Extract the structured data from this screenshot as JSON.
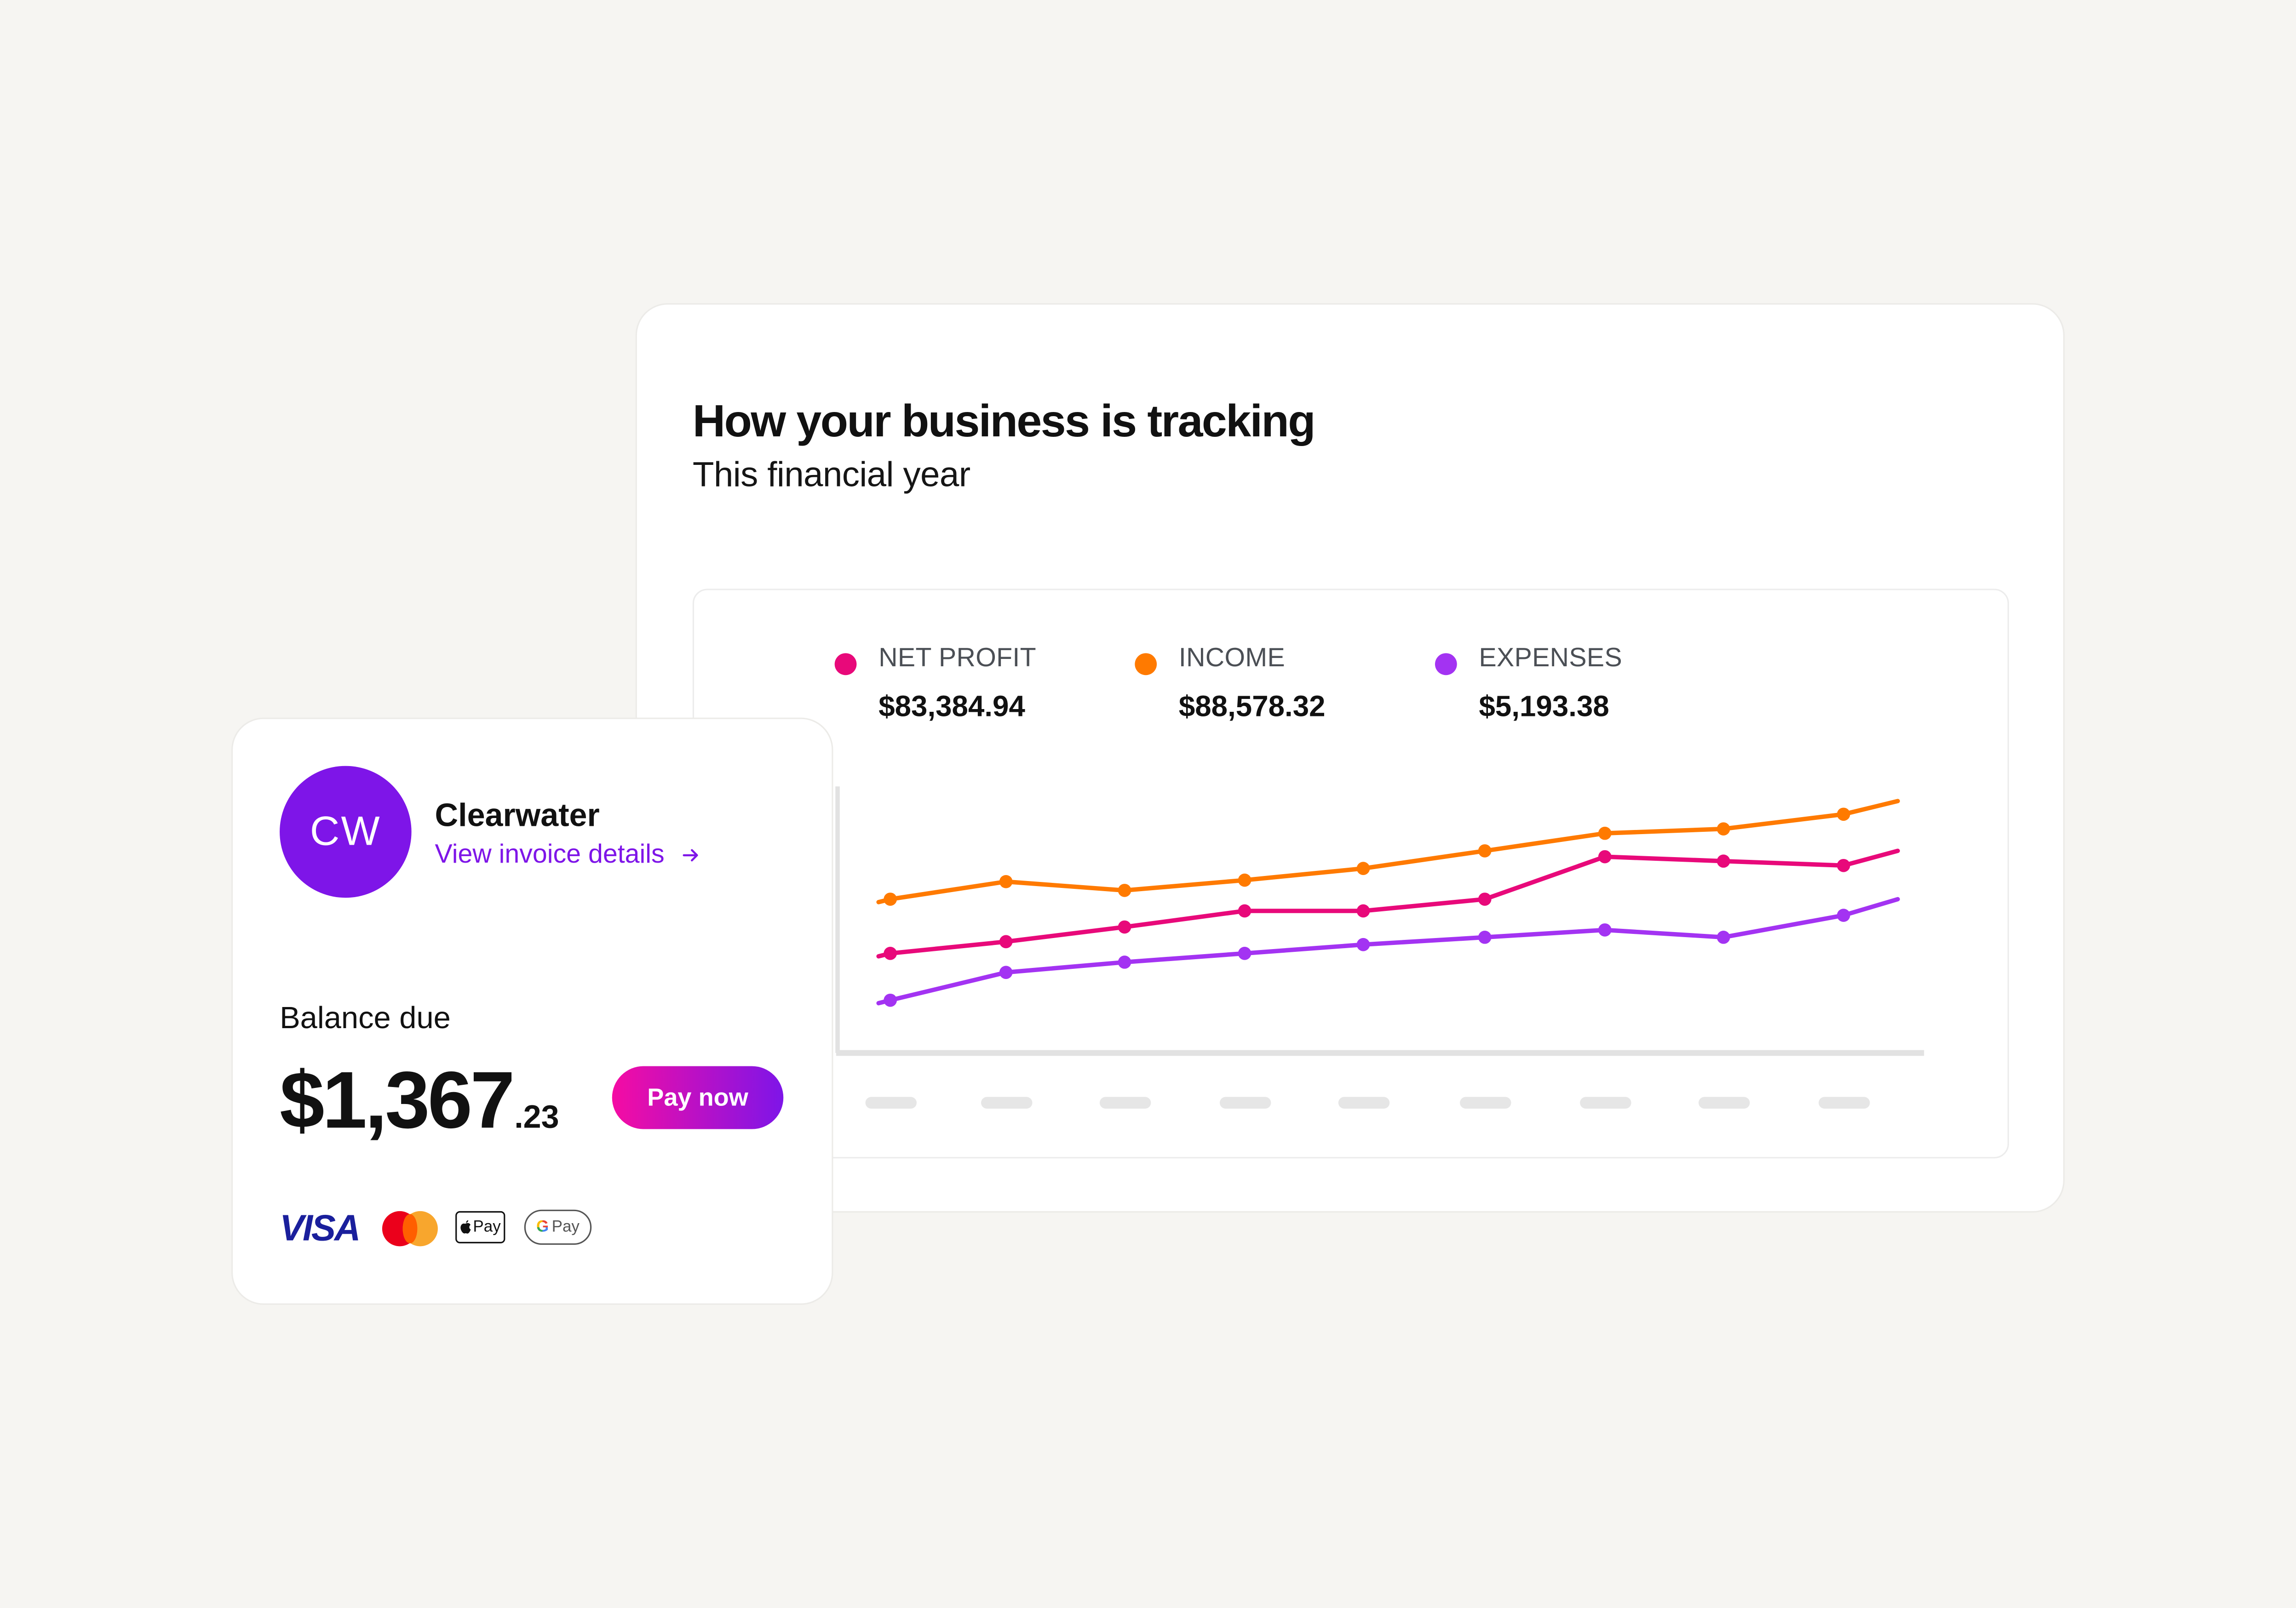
{
  "background_color": "#F6F5F2",
  "dashboard": {
    "title": "How your business is tracking",
    "subtitle": "This financial year",
    "legend": [
      {
        "label": "NET PROFIT",
        "value": "$83,384.94",
        "color": "#E8097A"
      },
      {
        "label": "INCOME",
        "value": "$88,578.32",
        "color": "#FF7A00"
      },
      {
        "label": "EXPENSES",
        "value": "$5,193.38",
        "color": "#A333F2"
      }
    ]
  },
  "chart_data": {
    "type": "line",
    "title": "How your business is tracking",
    "subtitle": "This financial year",
    "x": [
      1,
      2,
      3,
      4,
      5,
      6,
      7,
      8,
      9,
      9.45
    ],
    "x_tick_labels": [
      "",
      "",
      "",
      "",
      "",
      "",
      "",
      "",
      ""
    ],
    "x_tick_labels_note": "tick labels rendered as grey placeholder pills",
    "series": [
      {
        "name": "NET PROFIT",
        "color": "#E8097A",
        "values": [
          649,
          641,
          631,
          620,
          620,
          612,
          583,
          586,
          589,
          579
        ]
      },
      {
        "name": "INCOME",
        "color": "#FF7A00",
        "values": [
          612,
          600,
          606,
          599,
          591,
          579,
          567,
          564,
          554,
          545
        ]
      },
      {
        "name": "EXPENSES",
        "color": "#A333F2",
        "values": [
          681,
          662,
          655,
          649,
          643,
          638,
          633,
          638,
          623,
          612
        ]
      }
    ],
    "values_note": "values are pixel y-positions (lower = higher value); no y-axis scale shown",
    "xlabel": "",
    "ylabel": "",
    "grid": false,
    "legend_position": "top"
  },
  "invoice": {
    "avatar_initials": "CW",
    "avatar_color": "#7E15E8",
    "company": "Clearwater",
    "link_label": "View invoice details",
    "link_icon": "arrow-right-icon",
    "balance_label": "Balance due",
    "amount_major": "$1,367",
    "amount_minor": ".23",
    "pay_button": "Pay now",
    "payment_methods": [
      "VISA",
      "Mastercard",
      "Apple Pay",
      "Google Pay"
    ],
    "visa_label": "VISA",
    "applepay_label": "Pay",
    "gpay_g": "G",
    "gpay_label": "Pay"
  }
}
